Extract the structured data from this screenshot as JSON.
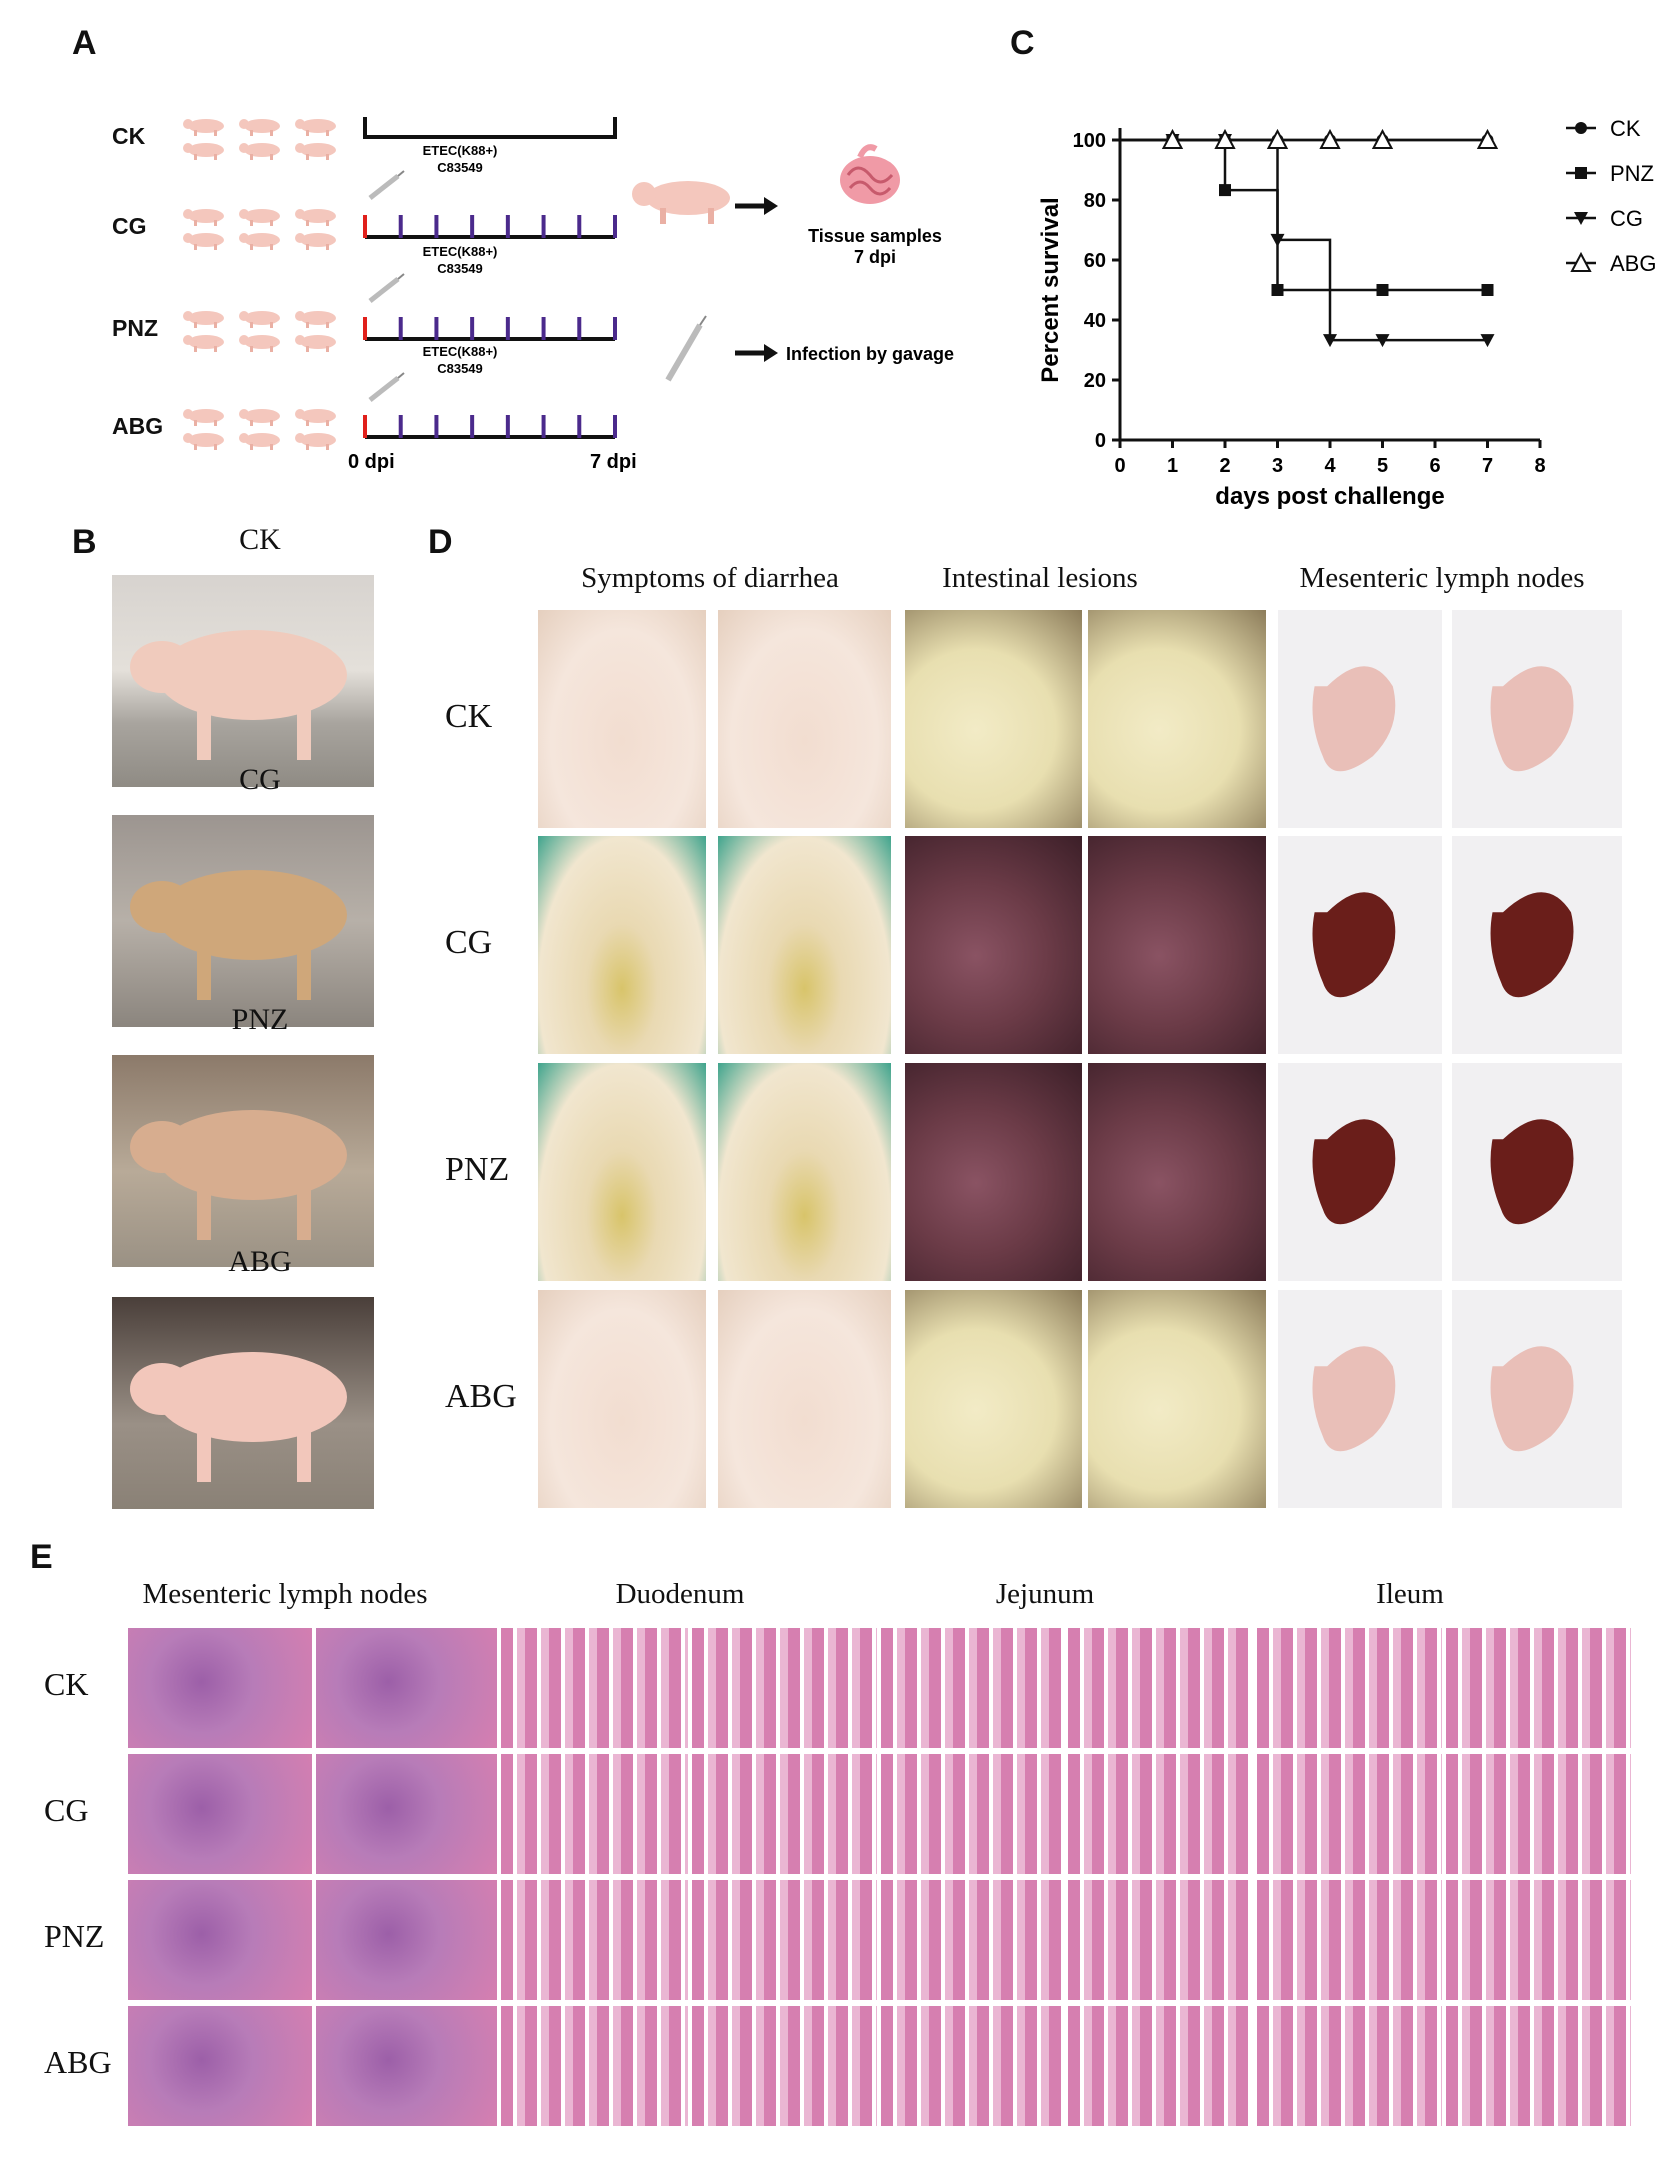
{
  "panels": {
    "a": "A",
    "b": "B",
    "c": "C",
    "d": "D",
    "e": "E"
  },
  "panel_a": {
    "groups": [
      {
        "label": "CK"
      },
      {
        "label": "CG"
      },
      {
        "label": "PNZ"
      },
      {
        "label": "ABG"
      }
    ],
    "etec_label_1": "ETEC(K88+)",
    "etec_label_2": "C83549",
    "tissue_1": "Tissue samples",
    "tissue_2": "7 dpi",
    "infection": "Infection by gavage",
    "dpi_start": "0 dpi",
    "dpi_end": "7 dpi",
    "colors": {
      "red_tick": "#e0201b",
      "purple_tick": "#4b2a8c",
      "line": "#111111"
    }
  },
  "panel_b": {
    "labels": [
      "CK",
      "CG",
      "PNZ",
      "ABG"
    ]
  },
  "chart_data": {
    "type": "line",
    "ylabel": "Percent survival",
    "xlabel": "days post challenge",
    "xlim": [
      0,
      8
    ],
    "ylim": [
      0,
      100
    ],
    "xticks": [
      "0",
      "1",
      "2",
      "3",
      "4",
      "5",
      "6",
      "7",
      "8"
    ],
    "yticks": [
      "0",
      "20",
      "40",
      "60",
      "80",
      "100"
    ],
    "legend_position": "right",
    "series": [
      {
        "name": "CK",
        "marker": "circle",
        "steps": [
          [
            0,
            100
          ],
          [
            7,
            100
          ]
        ],
        "points": [
          [
            1,
            100
          ],
          [
            2,
            100
          ],
          [
            3,
            100
          ],
          [
            4,
            100
          ],
          [
            5,
            100
          ],
          [
            7,
            100
          ]
        ]
      },
      {
        "name": "PNZ",
        "marker": "square",
        "steps": [
          [
            0,
            100
          ],
          [
            2,
            100
          ],
          [
            2,
            83.3
          ],
          [
            3,
            83.3
          ],
          [
            3,
            50
          ],
          [
            7,
            50
          ]
        ],
        "points": [
          [
            1,
            100
          ],
          [
            2,
            83.3
          ],
          [
            3,
            50
          ],
          [
            5,
            50
          ],
          [
            7,
            50
          ]
        ]
      },
      {
        "name": "CG",
        "marker": "triangle-down",
        "steps": [
          [
            0,
            100
          ],
          [
            3,
            100
          ],
          [
            3,
            66.7
          ],
          [
            4,
            66.7
          ],
          [
            4,
            33.3
          ],
          [
            7,
            33.3
          ]
        ],
        "points": [
          [
            1,
            100
          ],
          [
            2,
            100
          ],
          [
            3,
            66.7
          ],
          [
            4,
            33.3
          ],
          [
            5,
            33.3
          ],
          [
            7,
            33.3
          ]
        ]
      },
      {
        "name": "ABG",
        "marker": "triangle-open",
        "steps": [
          [
            0,
            100
          ],
          [
            7,
            100
          ]
        ],
        "points": [
          [
            1,
            100
          ],
          [
            2,
            100
          ],
          [
            3,
            100
          ],
          [
            4,
            100
          ],
          [
            5,
            100
          ],
          [
            7,
            100
          ]
        ]
      }
    ]
  },
  "panel_d": {
    "col_titles": [
      "Symptoms of diarrhea",
      "Intestinal lesions",
      "Mesenteric lymph nodes"
    ],
    "rows": [
      "CK",
      "CG",
      "PNZ",
      "ABG"
    ],
    "colors": {
      "ck_skin": "#f2ddd0",
      "cg_skin": "#e9d9b2",
      "healthy_gut": "#e8dfb0",
      "sick_gut": "#6b3b47",
      "healthy_node": "#e9bfb8",
      "sick_node": "#6a1e1a"
    }
  },
  "panel_e": {
    "col_titles": [
      "Mesenteric lymph nodes",
      "Duodenum",
      "Jejunum",
      "Ileum"
    ],
    "rows": [
      "CK",
      "CG",
      "PNZ",
      "ABG"
    ],
    "colors": {
      "he_pink": "#d67fb0",
      "he_purple": "#9c5fa8",
      "he_light": "#eab6d3"
    }
  }
}
